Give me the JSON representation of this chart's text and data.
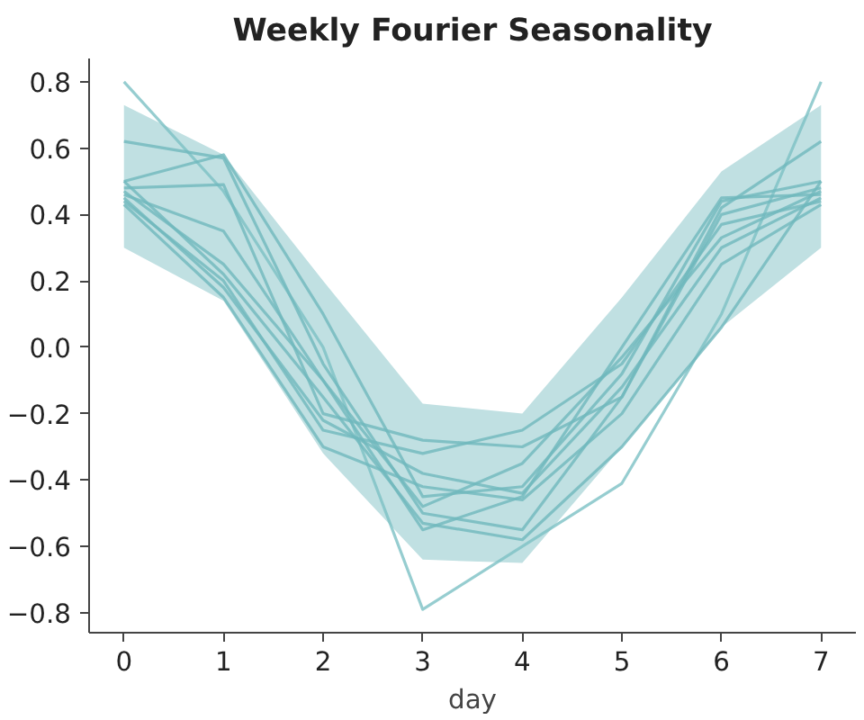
{
  "chart_data": {
    "type": "line",
    "title": "Weekly Fourier Seasonality",
    "xlabel": "day",
    "x": [
      0,
      1,
      2,
      3,
      4,
      5,
      6,
      7
    ],
    "xlim": [
      -0.35,
      7.35
    ],
    "xticks": [
      0,
      1,
      2,
      3,
      4,
      5,
      6,
      7
    ],
    "ylim": [
      -0.86,
      0.87
    ],
    "yticks": [
      -0.8,
      -0.6,
      -0.4,
      -0.2,
      {
        "value": 0,
        "label": "0.0"
      },
      0.2,
      0.4,
      0.6,
      0.8
    ],
    "grid": false,
    "line_style": "solid",
    "marker": "none",
    "series": [
      {
        "type": "area",
        "color": "#c0e0e2",
        "values": [
          null,
          null,
          null,
          null,
          null,
          null,
          null,
          null
        ],
        "lower": [
          0.3,
          0.14,
          -0.32,
          -0.64,
          -0.65,
          -0.3,
          0.06,
          0.3
        ],
        "upper": [
          0.73,
          0.58,
          0.2,
          -0.17,
          -0.2,
          0.15,
          0.53,
          0.73
        ]
      },
      {
        "color": "#7cc0c4",
        "values": [
          0.8,
          0.47,
          0.0,
          -0.79,
          -0.6,
          -0.41,
          0.1,
          0.8
        ]
      },
      {
        "color": "#6fb8bd",
        "values": [
          0.62,
          0.57,
          -0.05,
          -0.5,
          -0.55,
          -0.15,
          0.42,
          0.62
        ]
      },
      {
        "color": "#6fb8bd",
        "values": [
          0.5,
          0.58,
          0.1,
          -0.45,
          -0.42,
          -0.08,
          0.44,
          0.5
        ]
      },
      {
        "color": "#6fb8bd",
        "values": [
          0.48,
          0.49,
          -0.2,
          -0.28,
          -0.3,
          -0.15,
          0.4,
          0.48
        ]
      },
      {
        "color": "#6fb8bd",
        "values": [
          0.46,
          0.35,
          -0.1,
          -0.55,
          -0.45,
          0.0,
          0.45,
          0.46
        ]
      },
      {
        "color": "#6fb8bd",
        "values": [
          0.44,
          0.2,
          -0.25,
          -0.32,
          -0.25,
          -0.05,
          0.37,
          0.44
        ]
      },
      {
        "color": "#6fb8bd",
        "values": [
          0.43,
          0.15,
          -0.3,
          -0.42,
          -0.46,
          -0.2,
          0.25,
          0.43
        ]
      },
      {
        "color": "#6fb8bd",
        "values": [
          0.45,
          0.18,
          -0.22,
          -0.38,
          -0.44,
          -0.12,
          0.3,
          0.45
        ]
      },
      {
        "color": "#6fb8bd",
        "values": [
          0.47,
          0.25,
          -0.1,
          -0.48,
          -0.35,
          -0.03,
          0.33,
          0.47
        ]
      },
      {
        "color": "#6fb8bd",
        "values": [
          0.5,
          0.22,
          -0.15,
          -0.53,
          -0.58,
          -0.3,
          0.06,
          0.5
        ]
      }
    ]
  }
}
